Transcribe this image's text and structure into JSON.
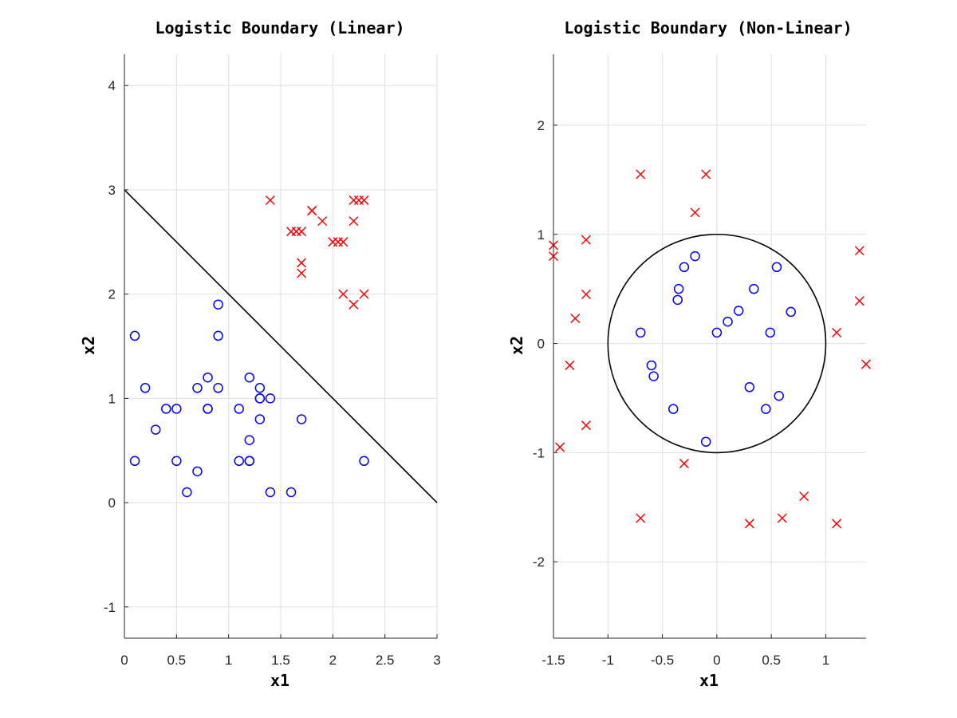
{
  "chart_data": [
    {
      "type": "scatter",
      "title": "Logistic Boundary (Linear)",
      "xlabel": "x1",
      "ylabel": "x2",
      "xlim": [
        0,
        3
      ],
      "ylim": [
        -1.3,
        4.3
      ],
      "xticks": [
        0,
        0.5,
        1,
        1.5,
        2,
        2.5,
        3
      ],
      "xtick_labels": [
        "0",
        "0.5",
        "1",
        "1.5",
        "2",
        "2.5",
        "3"
      ],
      "yticks": [
        -1,
        0,
        1,
        2,
        3,
        4
      ],
      "ytick_labels": [
        "-1",
        "0",
        "1",
        "2",
        "3",
        "4"
      ],
      "grid": true,
      "series": [
        {
          "marker": "circle",
          "color": "#0000ff",
          "x": [
            0.1,
            0.2,
            0.3,
            0.4,
            0.5,
            0.1,
            0.5,
            0.6,
            0.7,
            0.7,
            0.8,
            0.8,
            0.8,
            0.9,
            0.9,
            0.9,
            1.1,
            1.1,
            1.2,
            1.2,
            1.2,
            1.2,
            1.3,
            1.3,
            1.3,
            1.3,
            1.4,
            1.4,
            1.6,
            1.7,
            2.3
          ],
          "y": [
            1.6,
            1.1,
            0.7,
            0.9,
            0.9,
            0.4,
            0.4,
            0.1,
            1.1,
            0.3,
            1.2,
            0.9,
            0.9,
            1.9,
            1.6,
            1.1,
            0.9,
            0.4,
            1.2,
            0.6,
            0.4,
            0.4,
            1.1,
            1.0,
            1.0,
            0.8,
            1.0,
            0.1,
            0.1,
            0.8,
            0.4
          ]
        },
        {
          "marker": "x",
          "color": "#ff0000",
          "x": [
            1.4,
            1.6,
            1.65,
            1.7,
            1.7,
            1.7,
            1.8,
            1.8,
            1.9,
            2.0,
            2.05,
            2.1,
            2.1,
            2.2,
            2.2,
            2.2,
            2.25,
            2.3,
            2.3
          ],
          "y": [
            2.9,
            2.6,
            2.6,
            2.6,
            2.3,
            2.2,
            2.8,
            2.8,
            2.7,
            2.5,
            2.5,
            2.5,
            2.0,
            2.9,
            2.7,
            1.9,
            2.9,
            2.9,
            2.0
          ]
        }
      ],
      "boundary": {
        "kind": "line",
        "points": [
          [
            0,
            3
          ],
          [
            3,
            0
          ]
        ],
        "color": "#000000"
      }
    },
    {
      "type": "scatter",
      "title": "Logistic Boundary (Non-Linear)",
      "xlabel": "x1",
      "ylabel": "x2",
      "xlim": [
        -1.5,
        1.37
      ],
      "ylim": [
        -2.7,
        2.65
      ],
      "xticks": [
        -1.5,
        -1,
        -0.5,
        0,
        0.5,
        1
      ],
      "xtick_labels": [
        "-1.5",
        "-1",
        "-0.5",
        "0",
        "0.5",
        "1"
      ],
      "yticks": [
        -2,
        -1,
        0,
        1,
        2
      ],
      "ytick_labels": [
        "-2",
        "-1",
        "0",
        "1",
        "2"
      ],
      "grid": true,
      "series": [
        {
          "marker": "circle",
          "color": "#0000ff",
          "x": [
            -0.7,
            -0.6,
            -0.58,
            -0.4,
            -0.36,
            -0.35,
            -0.3,
            -0.2,
            -0.1,
            0.0,
            0.1,
            0.2,
            0.3,
            0.34,
            0.45,
            0.49,
            0.55,
            0.57,
            0.68
          ],
          "y": [
            0.1,
            -0.2,
            -0.3,
            -0.6,
            0.4,
            0.5,
            0.7,
            0.8,
            -0.9,
            0.1,
            0.2,
            0.3,
            -0.4,
            0.5,
            -0.6,
            0.1,
            0.7,
            -0.48,
            0.29
          ]
        },
        {
          "marker": "x",
          "color": "#ff0000",
          "x": [
            -1.5,
            -1.5,
            -1.44,
            -1.35,
            -1.3,
            -1.2,
            -1.2,
            -1.2,
            -0.7,
            -0.7,
            -0.3,
            -0.2,
            -0.1,
            0.3,
            0.6,
            0.8,
            1.1,
            1.1,
            1.31,
            1.31,
            1.37
          ],
          "y": [
            0.9,
            0.8,
            -0.95,
            -0.2,
            0.23,
            0.95,
            0.45,
            -0.75,
            1.55,
            -1.6,
            -1.1,
            1.2,
            1.55,
            -1.65,
            -1.6,
            -1.4,
            0.1,
            -1.65,
            0.85,
            0.39,
            -0.19
          ]
        }
      ],
      "boundary": {
        "kind": "circle",
        "center": [
          0,
          0
        ],
        "radius": 1,
        "color": "#000000"
      }
    }
  ]
}
